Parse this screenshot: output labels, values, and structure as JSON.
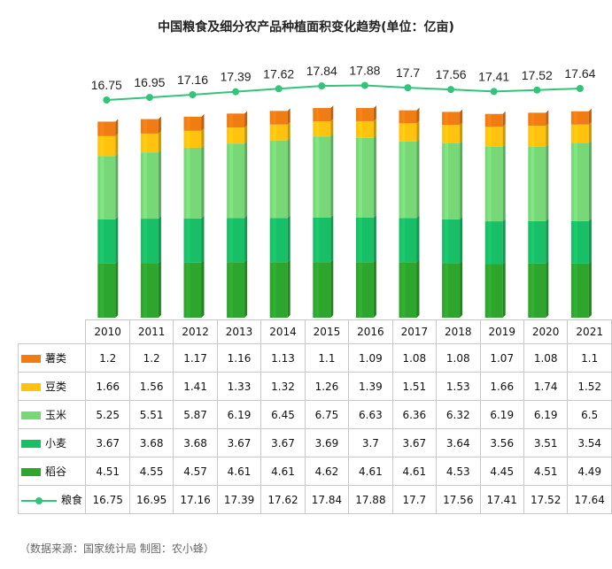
{
  "title": "中国粮食及细分农产品种植面积变化趋势(单位：亿亩)",
  "source": "（数据来源：国家统计局 制图：农小蜂）",
  "chart_data": {
    "type": "bar",
    "stacked": true,
    "categories": [
      "2010",
      "2011",
      "2012",
      "2013",
      "2014",
      "2015",
      "2016",
      "2017",
      "2018",
      "2019",
      "2020",
      "2021"
    ],
    "series": [
      {
        "name": "稻谷",
        "color": "#2ea62e",
        "values": [
          4.51,
          4.55,
          4.57,
          4.61,
          4.61,
          4.62,
          4.61,
          4.61,
          4.53,
          4.45,
          4.51,
          4.49
        ]
      },
      {
        "name": "小麦",
        "color": "#19bf66",
        "values": [
          3.67,
          3.68,
          3.68,
          3.67,
          3.67,
          3.69,
          3.7,
          3.67,
          3.64,
          3.56,
          3.51,
          3.54
        ]
      },
      {
        "name": "玉米",
        "color": "#78d878",
        "values": [
          5.25,
          5.51,
          5.87,
          6.19,
          6.45,
          6.75,
          6.63,
          6.36,
          6.32,
          6.19,
          6.19,
          6.5
        ]
      },
      {
        "name": "豆类",
        "color": "#ffc20e",
        "values": [
          1.66,
          1.56,
          1.41,
          1.33,
          1.32,
          1.26,
          1.39,
          1.51,
          1.53,
          1.66,
          1.74,
          1.52
        ]
      },
      {
        "name": "薯类",
        "color": "#f07c14",
        "values": [
          1.2,
          1.2,
          1.17,
          1.16,
          1.13,
          1.1,
          1.09,
          1.08,
          1.08,
          1.07,
          1.08,
          1.1
        ]
      }
    ],
    "line": {
      "name": "粮食",
      "color": "#34c37a",
      "values": [
        16.75,
        16.95,
        17.16,
        17.39,
        17.62,
        17.84,
        17.88,
        17.7,
        17.56,
        17.41,
        17.52,
        17.64
      ]
    },
    "table_row_order": [
      "薯类",
      "豆类",
      "玉米",
      "小麦",
      "稻谷",
      "粮食"
    ],
    "legend": "table-left"
  }
}
